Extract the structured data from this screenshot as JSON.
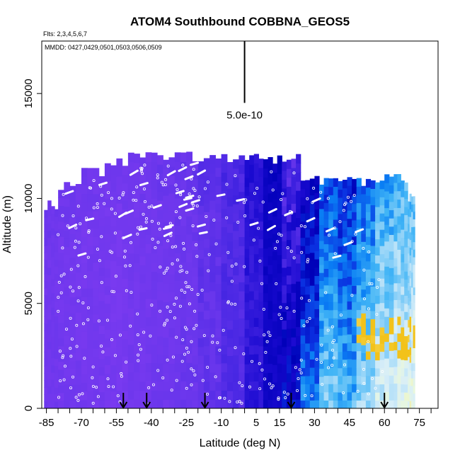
{
  "chart_data": {
    "type": "heatmap",
    "title": "ATOM4 Southbound COBBNA_GEOS5",
    "subtitle_flights": "Flts: 2,3,4,5,6,7",
    "subtitle_dates": "MMDD: 0427,0429,0501,0503,0506,0509",
    "xlabel": "Latitude (deg N)",
    "ylabel": "Altitude (m)",
    "xlim": [
      -87,
      83
    ],
    "ylim": [
      0,
      17500
    ],
    "xticks": [
      -85,
      -70,
      -55,
      -40,
      -25,
      -10,
      5,
      15,
      30,
      45,
      60,
      75
    ],
    "xticks_minor": [
      -80,
      -75,
      -65,
      -60,
      -50,
      -45,
      -35,
      -30,
      -20,
      -15,
      -5,
      0,
      10,
      20,
      25,
      35,
      40,
      50,
      55,
      65,
      70,
      80
    ],
    "yticks": [
      0,
      5000,
      10000,
      15000
    ],
    "scale_bar_label": "5.0e-10",
    "scale_bar_x": 0,
    "scale_bar_range": [
      15500,
      17500
    ],
    "arrow_latitudes": [
      -52,
      -42,
      -17,
      20,
      60
    ],
    "colormap_low_to_high": [
      "#7a3af0",
      "#6a36ec",
      "#4a28e4",
      "#1a0ad0",
      "#0000b8",
      "#0a2ee0",
      "#0a7ef4",
      "#40b4f6",
      "#9ad6f8",
      "#d8eef8",
      "#eaf8da",
      "#f6e27a",
      "#f2c21a"
    ],
    "latitude_bins": [
      {
        "lat": [
          -86,
          -80
        ],
        "top": 9700,
        "level": 0.6
      },
      {
        "lat": [
          -80,
          -70
        ],
        "top": 10600,
        "level": 0.5
      },
      {
        "lat": [
          -70,
          -60
        ],
        "top": 11300,
        "level": 0.4
      },
      {
        "lat": [
          -60,
          -50
        ],
        "top": 11800,
        "level": 0.3
      },
      {
        "lat": [
          -50,
          -40
        ],
        "top": 12000,
        "level": 0.5
      },
      {
        "lat": [
          -40,
          -30
        ],
        "top": 12000,
        "level": 0.7
      },
      {
        "lat": [
          -30,
          -20
        ],
        "top": 12000,
        "level": 0.9
      },
      {
        "lat": [
          -20,
          -10
        ],
        "top": 11900,
        "level": 1.3
      },
      {
        "lat": [
          -10,
          0
        ],
        "top": 11900,
        "level": 1.8
      },
      {
        "lat": [
          0,
          8
        ],
        "top": 11900,
        "level": 2.6
      },
      {
        "lat": [
          8,
          16
        ],
        "top": 11900,
        "level": 3.4
      },
      {
        "lat": [
          16,
          24
        ],
        "top": 11900,
        "level": 4.2
      },
      {
        "lat": [
          24,
          32
        ],
        "top": 11000,
        "level": 6.0
      },
      {
        "lat": [
          32,
          40
        ],
        "top": 10800,
        "level": 7.6
      },
      {
        "lat": [
          40,
          48
        ],
        "top": 10800,
        "level": 7.0
      },
      {
        "lat": [
          48,
          56
        ],
        "top": 10800,
        "level": 8.0
      },
      {
        "lat": [
          56,
          64
        ],
        "top": 11000,
        "level": 9.0
      },
      {
        "lat": [
          64,
          70
        ],
        "top": 11000,
        "level": 9.4
      },
      {
        "lat": [
          70,
          73
        ],
        "top": 10000,
        "level": 9.6
      }
    ]
  }
}
